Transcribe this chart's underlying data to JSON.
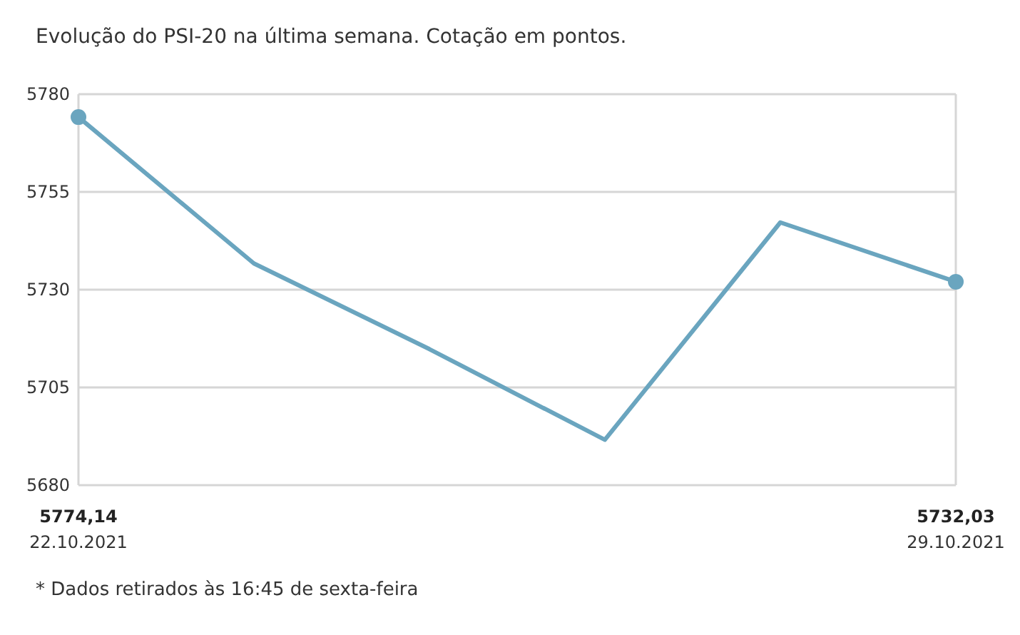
{
  "chart_data": {
    "type": "line",
    "title": "Evolução do PSI-20 na última semana. Cotação em pontos.",
    "categories": [
      "22.10.2021",
      null,
      null,
      null,
      null,
      "29.10.2021"
    ],
    "series": [
      {
        "color": "#6aa5bf",
        "values": [
          5774.14,
          5736.7,
          5714.8,
          5691.6,
          5747.2,
          5732.03
        ],
        "value_labels": [
          "5774,14",
          null,
          null,
          null,
          null,
          "5732,03"
        ]
      },
      {
        "type": "scatter",
        "color": "#6aa5bf",
        "values": [
          5774.14,
          null,
          null,
          null,
          null,
          5732.03
        ],
        "marker": "circle"
      }
    ],
    "ylim": [
      5680,
      5780
    ],
    "yticks": [
      5680,
      5705,
      5730,
      5755,
      5780
    ],
    "grid": "y",
    "line_style": "solid",
    "annotations": [
      "* Dados retirados às 16:45 de sexta-feira"
    ]
  }
}
